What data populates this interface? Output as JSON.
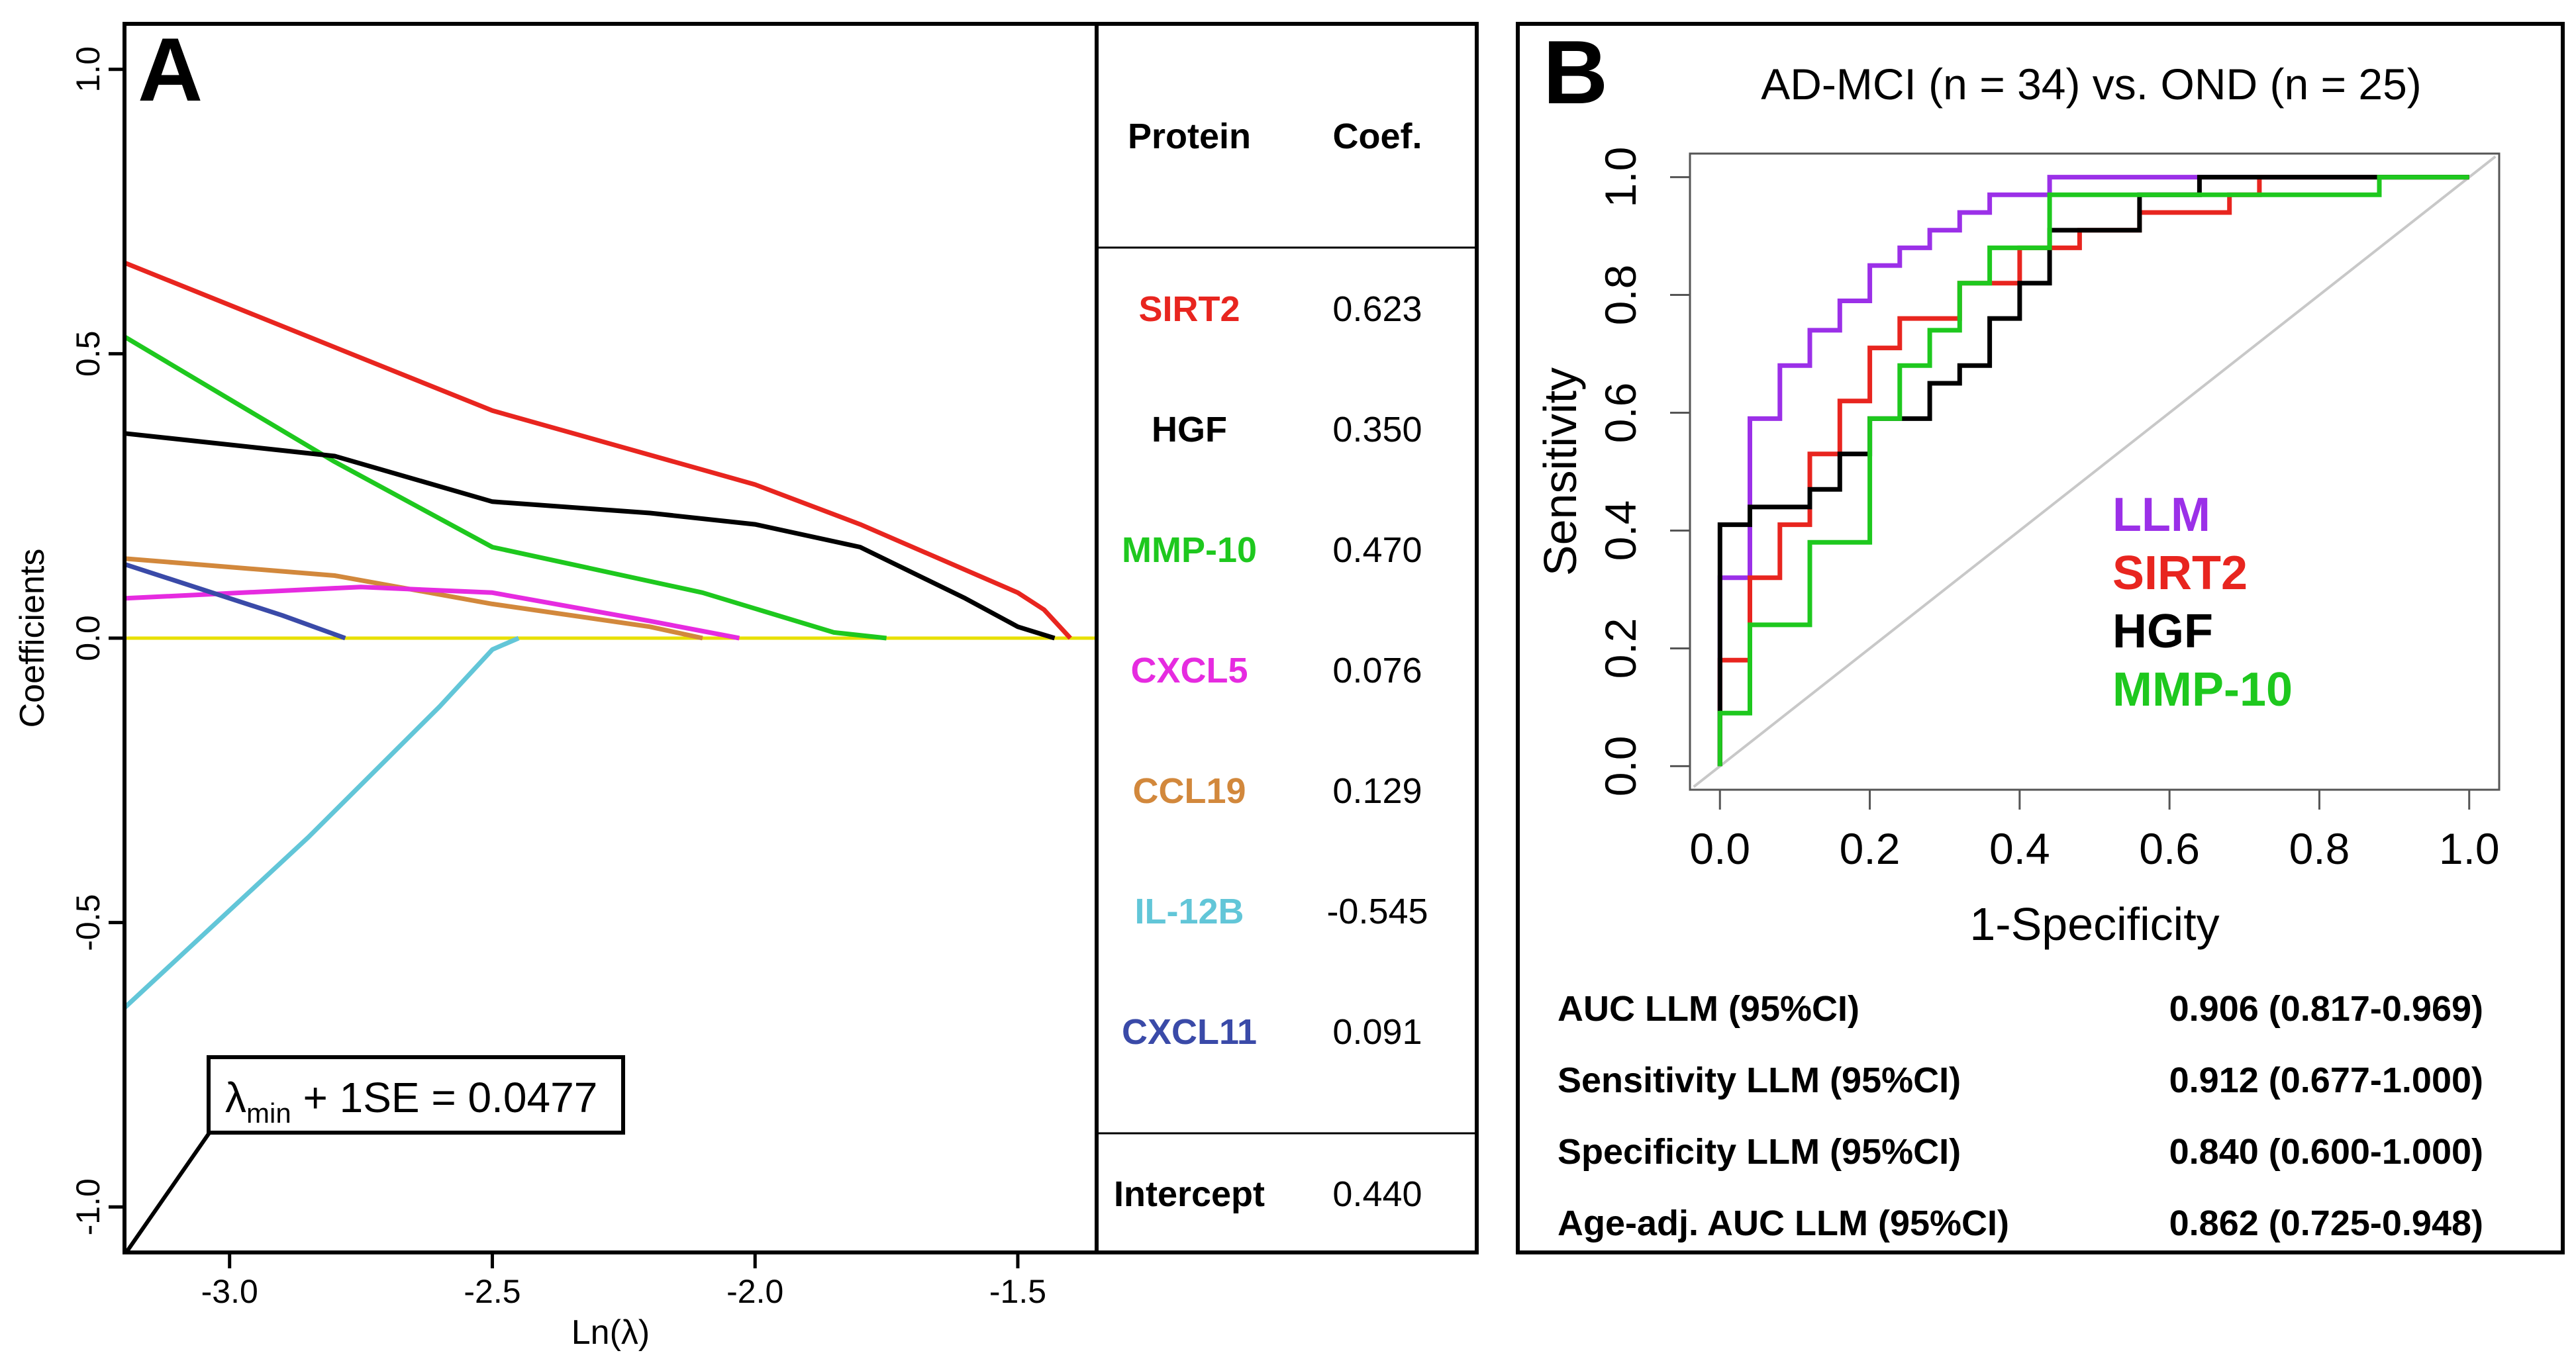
{
  "panel_a": {
    "label": "A",
    "table_header": {
      "protein": "Protein",
      "coef": "Coef."
    },
    "proteins": [
      {
        "name": "SIRT2",
        "coef": "0.623",
        "color": "#e8251f"
      },
      {
        "name": "HGF",
        "coef": "0.350",
        "color": "#000000"
      },
      {
        "name": "MMP-10",
        "coef": "0.470",
        "color": "#1ec81e"
      },
      {
        "name": "CXCL5",
        "coef": "0.076",
        "color": "#e62be0"
      },
      {
        "name": "CCL19",
        "coef": "0.129",
        "color": "#d2883c"
      },
      {
        "name": "IL-12B",
        "coef": "-0.545",
        "color": "#62c6d8"
      },
      {
        "name": "CXCL11",
        "coef": "0.091",
        "color": "#3a4aa8"
      }
    ],
    "intercept": {
      "label": "Intercept",
      "value": "0.440"
    },
    "annotation": {
      "lambda": "λ",
      "sub": "min",
      "rest": " + 1SE = 0.0477"
    },
    "baseline_color": "#e8e000"
  },
  "panel_b": {
    "label": "B",
    "title": "AD-MCI (n = 34) vs. OND (n = 25)",
    "legend": [
      {
        "name": "LLM",
        "color": "#9b30e8"
      },
      {
        "name": "SIRT2",
        "color": "#e8251f"
      },
      {
        "name": "HGF",
        "color": "#000000"
      },
      {
        "name": "MMP-10",
        "color": "#1ec81e"
      }
    ],
    "stats": [
      {
        "label": "AUC LLM (95%CI)",
        "value": "0.906 (0.817-0.969)"
      },
      {
        "label": "Sensitivity LLM (95%CI)",
        "value": "0.912 (0.677-1.000)"
      },
      {
        "label": "Specificity LLM (95%CI)",
        "value": "0.840 (0.600-1.000)"
      },
      {
        "label": "Age-adj. AUC LLM (95%CI)",
        "value": "0.862 (0.725-0.948)"
      }
    ]
  },
  "chart_data": [
    {
      "type": "line",
      "title": "",
      "xlabel": "Ln(λ)",
      "ylabel": "Coefficients",
      "xlim": [
        -3.2,
        -1.35
      ],
      "ylim": [
        -1.08,
        1.08
      ],
      "xticks": [
        -3.0,
        -2.5,
        -2.0,
        -1.5
      ],
      "xtick_labels": [
        "-3.0",
        "-2.5",
        "-2.0",
        "-1.5"
      ],
      "yticks": [
        -1.0,
        -0.5,
        0.0,
        0.5,
        1.0
      ],
      "ytick_labels": [
        "-1.0",
        "-0.5",
        "0.0",
        "0.5",
        "1.0"
      ],
      "series": [
        {
          "name": "SIRT2",
          "color": "#e8251f",
          "x": [
            -3.2,
            -2.5,
            -2.0,
            -1.8,
            -1.5,
            -1.45,
            -1.4
          ],
          "y": [
            0.66,
            0.4,
            0.27,
            0.2,
            0.08,
            0.05,
            0.0
          ]
        },
        {
          "name": "MMP-10",
          "color": "#1ec81e",
          "x": [
            -3.2,
            -2.8,
            -2.5,
            -2.1,
            -1.85,
            -1.75
          ],
          "y": [
            0.53,
            0.31,
            0.16,
            0.08,
            0.01,
            0.0
          ]
        },
        {
          "name": "HGF",
          "color": "#000000",
          "x": [
            -3.2,
            -2.8,
            -2.5,
            -2.2,
            -2.0,
            -1.8,
            -1.6,
            -1.5,
            -1.43
          ],
          "y": [
            0.36,
            0.32,
            0.24,
            0.22,
            0.2,
            0.16,
            0.07,
            0.02,
            0.0
          ]
        },
        {
          "name": "CCL19",
          "color": "#d2883c",
          "x": [
            -3.2,
            -2.8,
            -2.5,
            -2.2,
            -2.1
          ],
          "y": [
            0.14,
            0.11,
            0.06,
            0.02,
            0.0
          ]
        },
        {
          "name": "CXCL5",
          "color": "#e62be0",
          "x": [
            -3.2,
            -2.75,
            -2.5,
            -2.2,
            -2.03
          ],
          "y": [
            0.07,
            0.09,
            0.08,
            0.03,
            0.0
          ]
        },
        {
          "name": "CXCL11",
          "color": "#3a4aa8",
          "x": [
            -3.2,
            -2.9,
            -2.78
          ],
          "y": [
            0.13,
            0.04,
            0.0
          ]
        },
        {
          "name": "IL-12B",
          "color": "#62c6d8",
          "x": [
            -3.2,
            -2.85,
            -2.6,
            -2.5,
            -2.45
          ],
          "y": [
            -0.65,
            -0.35,
            -0.12,
            -0.02,
            0.0
          ]
        }
      ],
      "reference_line": {
        "y": 0.0,
        "color": "#e8e000"
      }
    },
    {
      "type": "line",
      "title": "AD-MCI (n = 34) vs. OND (n = 25)",
      "xlabel": "1-Specificity",
      "ylabel": "Sensitivity",
      "xlim": [
        -0.04,
        1.04
      ],
      "ylim": [
        -0.04,
        1.04
      ],
      "xticks": [
        0.0,
        0.2,
        0.4,
        0.6,
        0.8,
        1.0
      ],
      "xtick_labels": [
        "0.0",
        "0.2",
        "0.4",
        "0.6",
        "0.8",
        "1.0"
      ],
      "yticks": [
        0.0,
        0.2,
        0.4,
        0.6,
        0.8,
        1.0
      ],
      "ytick_labels": [
        "0.0",
        "0.2",
        "0.4",
        "0.6",
        "0.8",
        "1.0"
      ],
      "diagonal": {
        "from": [
          0,
          0
        ],
        "to": [
          1,
          1
        ],
        "color": "#c8c8c8"
      },
      "series": [
        {
          "name": "LLM",
          "color": "#9b30e8",
          "x": [
            0,
            0,
            0.04,
            0.04,
            0.08,
            0.08,
            0.12,
            0.12,
            0.16,
            0.16,
            0.2,
            0.2,
            0.24,
            0.24,
            0.28,
            0.28,
            0.32,
            0.32,
            0.36,
            0.36,
            0.44,
            0.44,
            1.0
          ],
          "y": [
            0,
            0.32,
            0.32,
            0.59,
            0.59,
            0.68,
            0.68,
            0.74,
            0.74,
            0.79,
            0.79,
            0.85,
            0.85,
            0.88,
            0.88,
            0.91,
            0.91,
            0.94,
            0.94,
            0.97,
            0.97,
            1.0,
            1.0
          ]
        },
        {
          "name": "SIRT2",
          "color": "#e8251f",
          "x": [
            0,
            0,
            0.04,
            0.04,
            0.08,
            0.08,
            0.12,
            0.12,
            0.16,
            0.16,
            0.2,
            0.2,
            0.24,
            0.24,
            0.32,
            0.32,
            0.4,
            0.4,
            0.48,
            0.48,
            0.56,
            0.56,
            0.68,
            0.68,
            0.72,
            0.72,
            1.0
          ],
          "y": [
            0,
            0.18,
            0.18,
            0.32,
            0.32,
            0.41,
            0.41,
            0.53,
            0.53,
            0.62,
            0.62,
            0.71,
            0.71,
            0.76,
            0.76,
            0.82,
            0.82,
            0.88,
            0.88,
            0.91,
            0.91,
            0.94,
            0.94,
            0.97,
            0.97,
            1.0,
            1.0
          ]
        },
        {
          "name": "HGF",
          "color": "#000000",
          "x": [
            0,
            0,
            0.04,
            0.04,
            0.12,
            0.12,
            0.16,
            0.16,
            0.2,
            0.2,
            0.28,
            0.28,
            0.32,
            0.32,
            0.36,
            0.36,
            0.4,
            0.4,
            0.44,
            0.44,
            0.56,
            0.56,
            0.64,
            0.64,
            1.0
          ],
          "y": [
            0,
            0.41,
            0.41,
            0.44,
            0.44,
            0.47,
            0.47,
            0.53,
            0.53,
            0.59,
            0.59,
            0.65,
            0.65,
            0.68,
            0.68,
            0.76,
            0.76,
            0.82,
            0.82,
            0.91,
            0.91,
            0.97,
            0.97,
            1.0,
            1.0
          ]
        },
        {
          "name": "MMP-10",
          "color": "#1ec81e",
          "x": [
            0,
            0,
            0.04,
            0.04,
            0.12,
            0.12,
            0.2,
            0.2,
            0.24,
            0.24,
            0.28,
            0.28,
            0.32,
            0.32,
            0.36,
            0.36,
            0.44,
            0.44,
            0.88,
            0.88,
            1.0
          ],
          "y": [
            0,
            0.09,
            0.09,
            0.24,
            0.24,
            0.38,
            0.38,
            0.59,
            0.59,
            0.68,
            0.68,
            0.74,
            0.74,
            0.82,
            0.82,
            0.88,
            0.88,
            0.97,
            0.97,
            1.0,
            1.0
          ]
        }
      ]
    }
  ]
}
